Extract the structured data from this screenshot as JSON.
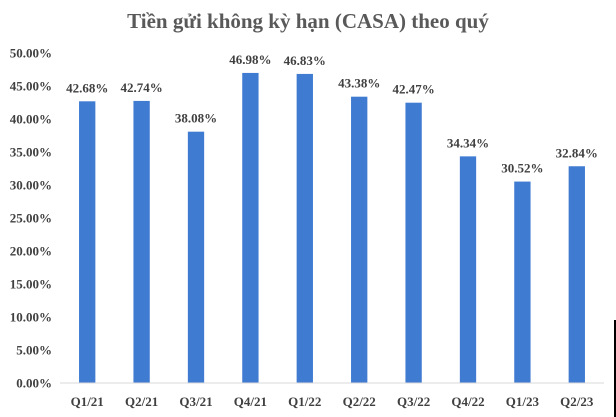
{
  "chart_data": {
    "type": "bar",
    "title": "Tiền gửi không kỳ hạn (CASA) theo quý",
    "xlabel": "",
    "ylabel": "",
    "categories": [
      "Q1/21",
      "Q2/21",
      "Q3/21",
      "Q4/21",
      "Q1/22",
      "Q2/22",
      "Q3/22",
      "Q4/22",
      "Q1/23",
      "Q2/23"
    ],
    "values": [
      42.68,
      42.74,
      38.08,
      46.98,
      46.83,
      43.38,
      42.47,
      34.34,
      30.52,
      32.84
    ],
    "data_labels": [
      "42.68%",
      "42.74%",
      "38.08%",
      "46.98%",
      "46.83%",
      "43.38%",
      "42.47%",
      "34.34%",
      "30.52%",
      "32.84%"
    ],
    "yticks": [
      "0.00%",
      "5.00%",
      "10.00%",
      "15.00%",
      "20.00%",
      "25.00%",
      "30.00%",
      "35.00%",
      "40.00%",
      "45.00%",
      "50.00%"
    ],
    "ylim": [
      0,
      50
    ],
    "grid": false,
    "legend": "none",
    "bar_color": "#3F7BD1",
    "axis_color": "#D9D9D9"
  }
}
